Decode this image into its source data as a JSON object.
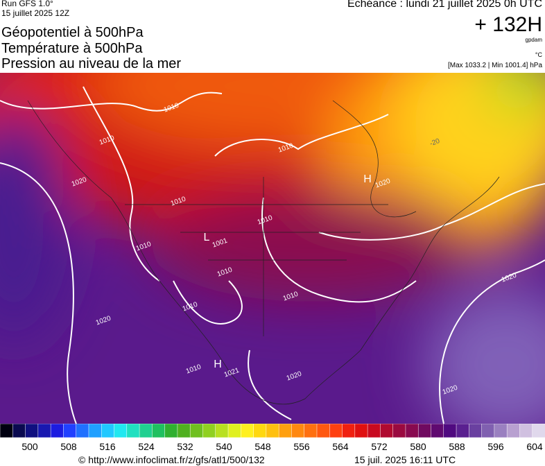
{
  "header": {
    "run": "Run GFS 1.0°",
    "date": "15 juillet 2025 12Z",
    "titles": [
      "Géopotentiel à 500hPa",
      "Température à 500hPa",
      "Pression au niveau de la mer"
    ],
    "echeance": "Echéance : lundi 21 juillet 2025 0h UTC",
    "lead": "+ 132H",
    "unit_geo": "gpdam",
    "unit_temp": "°C",
    "extremes": "[Max 1033.2 | Min 1001.4] hPa"
  },
  "map": {
    "contour_labels": [
      "1010",
      "1010",
      "1010",
      "1010",
      "1010",
      "1010",
      "1010",
      "1010",
      "1010",
      "1010",
      "1020",
      "1020",
      "1020",
      "1020",
      "1020",
      "1020",
      "1001",
      "1021",
      "-20",
      "H",
      "L",
      "H"
    ]
  },
  "colorbar": {
    "labels": [
      500,
      508,
      516,
      524,
      532,
      540,
      548,
      556,
      564,
      572,
      580,
      588,
      596,
      604
    ]
  },
  "footer": {
    "url": "© http://www.infoclimat.fr/z/gfs/atl1/500/132",
    "timestamp": "15 juil. 2025 16:11 UTC"
  }
}
